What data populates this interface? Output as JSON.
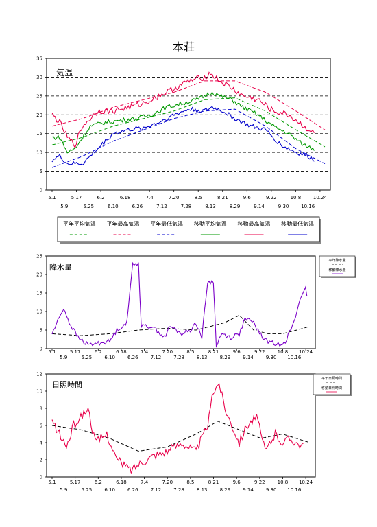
{
  "title": "本荘",
  "x_ticks_top": [
    "5.1",
    "5.17",
    "6.2",
    "6.18",
    "7.4",
    "7.20",
    "8.5",
    "8.21",
    "9.6",
    "9.22",
    "10.8",
    "10.24"
  ],
  "x_ticks_bottom": [
    "5.9",
    "5.25",
    "6.10",
    "6.26",
    "7.12",
    "7.28",
    "8.13",
    "8.29",
    "9.14",
    "9.30",
    "10.16"
  ],
  "colors": {
    "mean": "#009900",
    "max": "#e8004a",
    "min": "#0000cc",
    "precip": "#7b00c8",
    "sun": "#e8004a",
    "normal": "#000000"
  },
  "chart_data": [
    {
      "type": "line",
      "title": "気温",
      "ylim": [
        0,
        35
      ],
      "yticks": [
        "0",
        "5",
        "10",
        "15",
        "20",
        "25",
        "30",
        "35"
      ],
      "n_points": 180,
      "series": [
        {
          "name": "平年平均気温",
          "style": "dashed",
          "color": "mean",
          "key_values": [
            [
              0,
              12
            ],
            [
              20,
              14
            ],
            [
              40,
              17
            ],
            [
              60,
              19
            ],
            [
              80,
              21
            ],
            [
              100,
              24
            ],
            [
              120,
              24.5
            ],
            [
              140,
              21
            ],
            [
              160,
              16
            ],
            [
              179,
              11.5
            ]
          ]
        },
        {
          "name": "平年最高気温",
          "style": "dashed",
          "color": "max",
          "key_values": [
            [
              0,
              17
            ],
            [
              20,
              19
            ],
            [
              40,
              22
            ],
            [
              60,
              24
            ],
            [
              80,
              26
            ],
            [
              100,
              29
            ],
            [
              120,
              29
            ],
            [
              140,
              26
            ],
            [
              160,
              21
            ],
            [
              179,
              16
            ]
          ]
        },
        {
          "name": "平年最低気温",
          "style": "dashed",
          "color": "min",
          "key_values": [
            [
              0,
              6
            ],
            [
              20,
              9
            ],
            [
              40,
              13
            ],
            [
              60,
              16
            ],
            [
              80,
              19
            ],
            [
              100,
              21
            ],
            [
              120,
              21.5
            ],
            [
              140,
              17
            ],
            [
              160,
              11
            ],
            [
              179,
              7
            ]
          ]
        },
        {
          "name": "移動平均気温",
          "style": "solid",
          "color": "mean",
          "key_values": [
            [
              0,
              14
            ],
            [
              5,
              14
            ],
            [
              10,
              10
            ],
            [
              15,
              11
            ],
            [
              25,
              17
            ],
            [
              35,
              18
            ],
            [
              45,
              18.5
            ],
            [
              55,
              19
            ],
            [
              65,
              20
            ],
            [
              75,
              22
            ],
            [
              85,
              23
            ],
            [
              95,
              24
            ],
            [
              105,
              26
            ],
            [
              110,
              25
            ],
            [
              118,
              24
            ],
            [
              125,
              22
            ],
            [
              135,
              20
            ],
            [
              145,
              17
            ],
            [
              155,
              15
            ],
            [
              165,
              12
            ],
            [
              172,
              11
            ]
          ]
        },
        {
          "name": "移動最高気温",
          "style": "solid",
          "color": "max",
          "key_values": [
            [
              0,
              20
            ],
            [
              5,
              18
            ],
            [
              10,
              14
            ],
            [
              15,
              12
            ],
            [
              20,
              17
            ],
            [
              30,
              21
            ],
            [
              40,
              21
            ],
            [
              50,
              22
            ],
            [
              60,
              23
            ],
            [
              70,
              25
            ],
            [
              80,
              27
            ],
            [
              90,
              29
            ],
            [
              100,
              30
            ],
            [
              104,
              31
            ],
            [
              110,
              29
            ],
            [
              118,
              27
            ],
            [
              125,
              25
            ],
            [
              135,
              24
            ],
            [
              145,
              21
            ],
            [
              155,
              20
            ],
            [
              165,
              17
            ],
            [
              172,
              15
            ]
          ]
        },
        {
          "name": "移動最低気温",
          "style": "solid",
          "color": "min",
          "key_values": [
            [
              0,
              8
            ],
            [
              5,
              9
            ],
            [
              10,
              7
            ],
            [
              20,
              7
            ],
            [
              30,
              11
            ],
            [
              40,
              15
            ],
            [
              50,
              16
            ],
            [
              60,
              16.5
            ],
            [
              70,
              18
            ],
            [
              80,
              20
            ],
            [
              90,
              21.5
            ],
            [
              100,
              21
            ],
            [
              105,
              22
            ],
            [
              112,
              21
            ],
            [
              120,
              19
            ],
            [
              130,
              17
            ],
            [
              140,
              16
            ],
            [
              150,
              12
            ],
            [
              160,
              10
            ],
            [
              168,
              9
            ],
            [
              172,
              8
            ]
          ]
        }
      ]
    },
    {
      "type": "line",
      "title": "降水量",
      "ylim": [
        0,
        25
      ],
      "yticks": [
        "0",
        "5",
        "10",
        "15",
        "20",
        "25"
      ],
      "n_points": 180,
      "series": [
        {
          "name": "平年降水量",
          "style": "dashed",
          "color": "normal",
          "key_values": [
            [
              0,
              4
            ],
            [
              20,
              3.5
            ],
            [
              40,
              4
            ],
            [
              60,
              5
            ],
            [
              80,
              5.5
            ],
            [
              100,
              5
            ],
            [
              120,
              7
            ],
            [
              130,
              9
            ],
            [
              140,
              5
            ],
            [
              150,
              4
            ],
            [
              160,
              4
            ],
            [
              170,
              5
            ],
            [
              179,
              6
            ]
          ]
        },
        {
          "name": "移動降水量",
          "style": "solid",
          "color": "precip",
          "key_values": [
            [
              0,
              4
            ],
            [
              8,
              11
            ],
            [
              12,
              7
            ],
            [
              18,
              3
            ],
            [
              25,
              1
            ],
            [
              40,
              2
            ],
            [
              45,
              5
            ],
            [
              52,
              7
            ],
            [
              56,
              23
            ],
            [
              60,
              23
            ],
            [
              62,
              6
            ],
            [
              70,
              6
            ],
            [
              78,
              3
            ],
            [
              82,
              6
            ],
            [
              90,
              4
            ],
            [
              96,
              5
            ],
            [
              100,
              7
            ],
            [
              104,
              3
            ],
            [
              108,
              18
            ],
            [
              112,
              18
            ],
            [
              114,
              1
            ],
            [
              118,
              4
            ],
            [
              124,
              3
            ],
            [
              130,
              4
            ],
            [
              134,
              8
            ],
            [
              140,
              7
            ],
            [
              146,
              3
            ],
            [
              150,
              2
            ],
            [
              156,
              1
            ],
            [
              162,
              2
            ],
            [
              168,
              7
            ],
            [
              172,
              13
            ],
            [
              176,
              17
            ],
            [
              177,
              14
            ]
          ]
        }
      ]
    },
    {
      "type": "line",
      "title": "日照時間",
      "ylim": [
        0,
        12
      ],
      "yticks": [
        "0",
        "2",
        "4",
        "6",
        "8",
        "10",
        "12"
      ],
      "n_points": 180,
      "series": [
        {
          "name": "平年日照時間",
          "style": "dashed",
          "color": "normal",
          "key_values": [
            [
              0,
              6
            ],
            [
              20,
              5.5
            ],
            [
              40,
              4.5
            ],
            [
              60,
              3
            ],
            [
              80,
              3.5
            ],
            [
              100,
              5
            ],
            [
              115,
              6.5
            ],
            [
              130,
              5.5
            ],
            [
              145,
              4.5
            ],
            [
              160,
              5
            ],
            [
              179,
              4
            ]
          ]
        },
        {
          "name": "移動日照時間",
          "style": "solid",
          "color": "sun",
          "key_values": [
            [
              0,
              6.5
            ],
            [
              5,
              5
            ],
            [
              10,
              3.5
            ],
            [
              15,
              6
            ],
            [
              25,
              8
            ],
            [
              30,
              4
            ],
            [
              38,
              5
            ],
            [
              45,
              2
            ],
            [
              55,
              0.8
            ],
            [
              60,
              1.5
            ],
            [
              70,
              2.5
            ],
            [
              80,
              3
            ],
            [
              90,
              4
            ],
            [
              100,
              3
            ],
            [
              108,
              6
            ],
            [
              112,
              10
            ],
            [
              116,
              11
            ],
            [
              120,
              8
            ],
            [
              125,
              6
            ],
            [
              130,
              4
            ],
            [
              135,
              6
            ],
            [
              142,
              7
            ],
            [
              148,
              3
            ],
            [
              155,
              5
            ],
            [
              160,
              4
            ],
            [
              165,
              4.5
            ],
            [
              170,
              4
            ],
            [
              175,
              3.5
            ]
          ]
        }
      ]
    }
  ]
}
